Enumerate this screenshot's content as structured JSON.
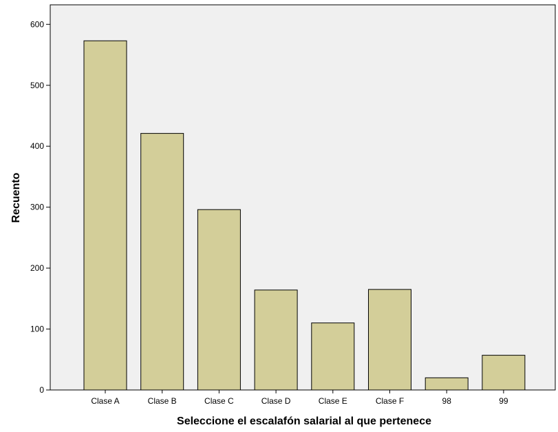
{
  "chart_data": {
    "type": "bar",
    "title": "",
    "xlabel": "Seleccione el escalafón salarial al que pertenece",
    "ylabel": "Recuento",
    "categories": [
      "Clase A",
      "Clase B",
      "Clase C",
      "Clase D",
      "Clase E",
      "Clase F",
      "98",
      "99"
    ],
    "values": [
      573,
      421,
      296,
      164,
      110,
      165,
      20,
      57
    ],
    "ylim": [
      0,
      632
    ],
    "yticks": [
      0,
      100,
      200,
      300,
      400,
      500,
      600
    ],
    "grid": false,
    "legend": "none",
    "colors": {
      "bar_fill": "#d3ce99",
      "bar_stroke": "#000000",
      "plot_background": "#f0f0f0",
      "page_background": "#ffffff"
    }
  }
}
